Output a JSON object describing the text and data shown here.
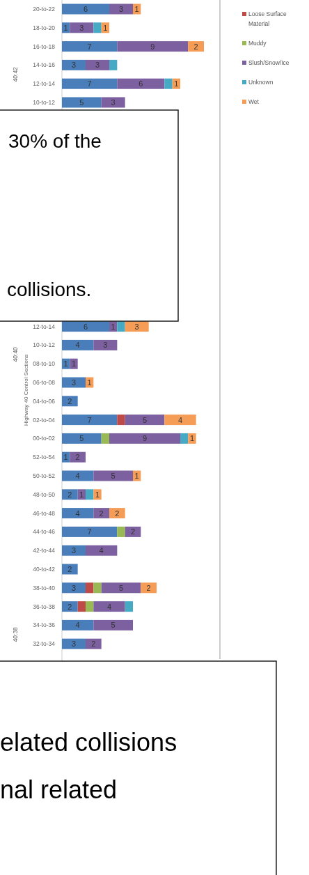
{
  "chart_data": {
    "type": "bar",
    "orientation": "horizontal",
    "stacked": true,
    "ylabel": "Highway 40 Control Sections",
    "legend": "right",
    "categories": [
      "20-to-22",
      "18-to-20",
      "16-to-18",
      "14-to-16",
      "12-to-14",
      "10-to-12",
      null,
      null,
      null,
      null,
      null,
      null,
      null,
      null,
      null,
      null,
      null,
      "12-to-14",
      "10-to-12",
      "08-to-10",
      "06-to-08",
      "04-to-06",
      "02-to-04",
      "00-to-02",
      "52-to-54",
      "50-to-52",
      "48-to-50",
      "46-to-48",
      "44-to-46",
      "42-to-44",
      "40-to-42",
      "38-to-40",
      "36-to-38",
      "34-to-36",
      "32-to-34",
      null
    ],
    "series": [
      {
        "color": "#4a7ebb",
        "values": [
          6,
          1,
          7,
          3,
          7,
          5,
          null,
          null,
          null,
          null,
          null,
          null,
          null,
          null,
          null,
          null,
          null,
          6,
          4,
          1,
          3,
          2,
          7,
          5,
          1,
          4,
          2,
          4,
          7,
          3,
          2,
          3,
          2,
          4,
          3,
          null
        ],
        "value_labels": [
          "6",
          "1",
          "7",
          "3",
          "7",
          "5",
          null,
          null,
          null,
          null,
          null,
          null,
          null,
          null,
          null,
          null,
          null,
          "6",
          "4",
          "1",
          "3",
          "2",
          "7",
          "5",
          "1",
          "4",
          "2",
          "4",
          "7",
          "3",
          "2",
          "3",
          "2",
          "4",
          "3",
          null
        ]
      },
      {
        "name": "Loose Surface Material",
        "color": "#be4b48",
        "values": [
          0,
          0,
          0,
          0,
          0,
          0,
          null,
          null,
          null,
          null,
          null,
          null,
          null,
          null,
          null,
          null,
          null,
          0,
          0,
          0,
          0,
          0,
          1,
          0,
          0,
          0,
          0,
          0,
          0,
          0,
          0,
          1,
          1,
          0,
          0,
          null
        ]
      },
      {
        "name": "Muddy",
        "color": "#98b954",
        "values": [
          0,
          0,
          0,
          0,
          0,
          0,
          null,
          null,
          null,
          null,
          null,
          null,
          null,
          null,
          null,
          null,
          null,
          0,
          0,
          0,
          0,
          0,
          0,
          1,
          0,
          0,
          0,
          0,
          1,
          0,
          0,
          1,
          1,
          0,
          0,
          null
        ]
      },
      {
        "name": "Slush/Snow/Ice",
        "color": "#7d60a0",
        "values": [
          3,
          3,
          9,
          3,
          6,
          3,
          null,
          null,
          null,
          null,
          null,
          null,
          null,
          null,
          null,
          null,
          null,
          1,
          3,
          1,
          0,
          0,
          5,
          9,
          2,
          5,
          1,
          2,
          2,
          4,
          0,
          5,
          4,
          5,
          2,
          null
        ],
        "value_labels": [
          "3",
          "3",
          "9",
          "3",
          "6",
          "3",
          null,
          null,
          null,
          null,
          null,
          null,
          null,
          null,
          null,
          null,
          null,
          "1",
          "3",
          "1",
          null,
          null,
          "5",
          "9",
          "2",
          "5",
          "1",
          "2",
          "2",
          "4",
          null,
          "5",
          "4",
          "5",
          "2",
          null
        ]
      },
      {
        "name": "Unknown",
        "color": "#46aac5",
        "values": [
          0,
          1,
          0,
          1,
          1,
          0,
          null,
          null,
          null,
          null,
          null,
          null,
          null,
          null,
          null,
          null,
          null,
          1,
          0,
          0,
          0,
          0,
          0,
          1,
          0,
          0,
          1,
          0,
          0,
          0,
          0,
          0,
          1,
          0,
          0,
          null
        ]
      },
      {
        "name": "Wet",
        "color": "#f59d56",
        "values": [
          1,
          1,
          2,
          0,
          1,
          0,
          null,
          null,
          null,
          null,
          null,
          null,
          null,
          null,
          null,
          null,
          null,
          3,
          0,
          0,
          1,
          0,
          4,
          1,
          0,
          1,
          1,
          2,
          0,
          0,
          0,
          2,
          0,
          0,
          0,
          null
        ],
        "value_labels": [
          "1",
          "1",
          "2",
          null,
          "1",
          null,
          null,
          null,
          null,
          null,
          null,
          null,
          null,
          null,
          null,
          null,
          null,
          "3",
          null,
          null,
          "1",
          null,
          "4",
          "1",
          null,
          "1",
          "1",
          "2",
          null,
          null,
          null,
          "2",
          null,
          null,
          null,
          null
        ]
      }
    ],
    "annotations": [
      "40:42",
      "40:40",
      "40:38",
      "30% of the",
      "collisions.",
      "elated collisions",
      "nal related"
    ]
  }
}
